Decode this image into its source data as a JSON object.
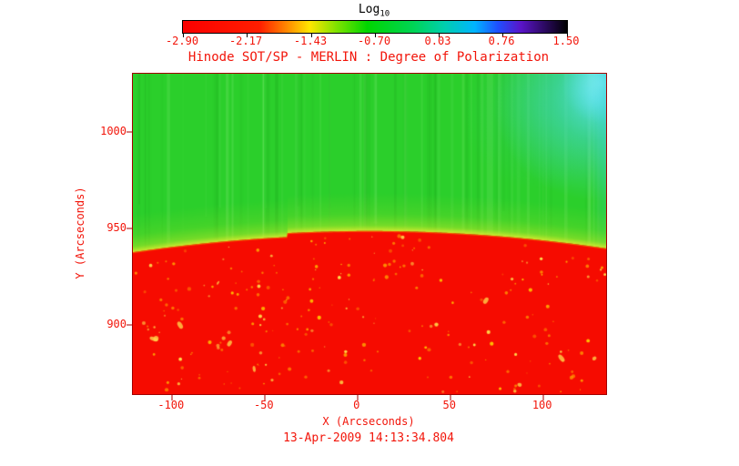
{
  "figure": {
    "background": "#ffffff",
    "text_color": "#f2150a",
    "frame_color": "#a30000"
  },
  "chart_data": {
    "type": "heatmap",
    "title": "Hinode SOT/SP - MERLIN : Degree of Polarization",
    "xlabel": "X (Arcseconds)",
    "ylabel": "Y (Arcseconds)",
    "annotation": "13-Apr-2009 14:13:34.804",
    "xlim": [
      -121,
      134
    ],
    "ylim": [
      864,
      1030
    ],
    "x_ticks": [
      -100,
      -50,
      0,
      50,
      100
    ],
    "x_tick_labels": [
      "-100",
      "-50",
      "0",
      "50",
      "100"
    ],
    "y_ticks": [
      1000,
      950,
      900
    ],
    "y_tick_labels": [
      "1000",
      "950",
      "900"
    ],
    "grid": false,
    "colorbar": {
      "label_main": "Log",
      "label_sub": "10",
      "scale": "log10",
      "range": [
        -2.9,
        1.5
      ],
      "ticks": [
        -2.9,
        -2.17,
        -1.43,
        -0.7,
        0.03,
        0.76,
        1.5
      ],
      "tick_labels": [
        "-2.90",
        "-2.17",
        "-1.43",
        "-0.70",
        "0.03",
        "0.76",
        "1.50"
      ],
      "gradient": [
        {
          "pos": 0,
          "color": "#fb0000"
        },
        {
          "pos": 20,
          "color": "#ff1e00"
        },
        {
          "pos": 27,
          "color": "#ff8800"
        },
        {
          "pos": 33,
          "color": "#ffe600"
        },
        {
          "pos": 40,
          "color": "#7fe300"
        },
        {
          "pos": 48,
          "color": "#00d600"
        },
        {
          "pos": 60,
          "color": "#00d455"
        },
        {
          "pos": 68,
          "color": "#00cfae"
        },
        {
          "pos": 76,
          "color": "#00b4ff"
        },
        {
          "pos": 82,
          "color": "#1f4fff"
        },
        {
          "pos": 88,
          "color": "#5a14c8"
        },
        {
          "pos": 94,
          "color": "#2d0a64"
        },
        {
          "pos": 100,
          "color": "#000000"
        }
      ]
    },
    "values": {
      "disk_log10": -2.9,
      "off_limb_log10": -0.7,
      "limb_band_log10": -1.5,
      "top_right_patch_log10": 0.3
    },
    "limb": {
      "center_y_arcsec": 948.5,
      "edge_y_arcsec": 939.5,
      "step_x_arcsec": -38,
      "step_drop_arcsec": 2
    },
    "regions": [
      {
        "name": "solar-disk",
        "where": "below limb curve (y < ~945)",
        "approx_log10": -2.9,
        "appearance": "red with yellow speckles"
      },
      {
        "name": "off-limb",
        "where": "above limb curve",
        "approx_log10": -0.7,
        "appearance": "green with faint vertical streaks"
      },
      {
        "name": "limb-brightening-band",
        "where": "y ~ 945-955 following curved limb",
        "approx_log10": -1.5,
        "appearance": "yellow-green band"
      },
      {
        "name": "top-right-patch",
        "where": "upper right corner x > ~100, y > ~1000",
        "approx_log10": 0.3,
        "appearance": "cyan-blue patch fading down right edge"
      }
    ],
    "colors": {
      "off_limb": "#2bcf2b",
      "disk": "#f60b00",
      "limb_band": "#c8e42c",
      "corner_cyan": "#46d7dc",
      "speckles": [
        "#ff9a00",
        "#ffc800",
        "#ffe34d",
        "#ff7a00"
      ]
    }
  }
}
